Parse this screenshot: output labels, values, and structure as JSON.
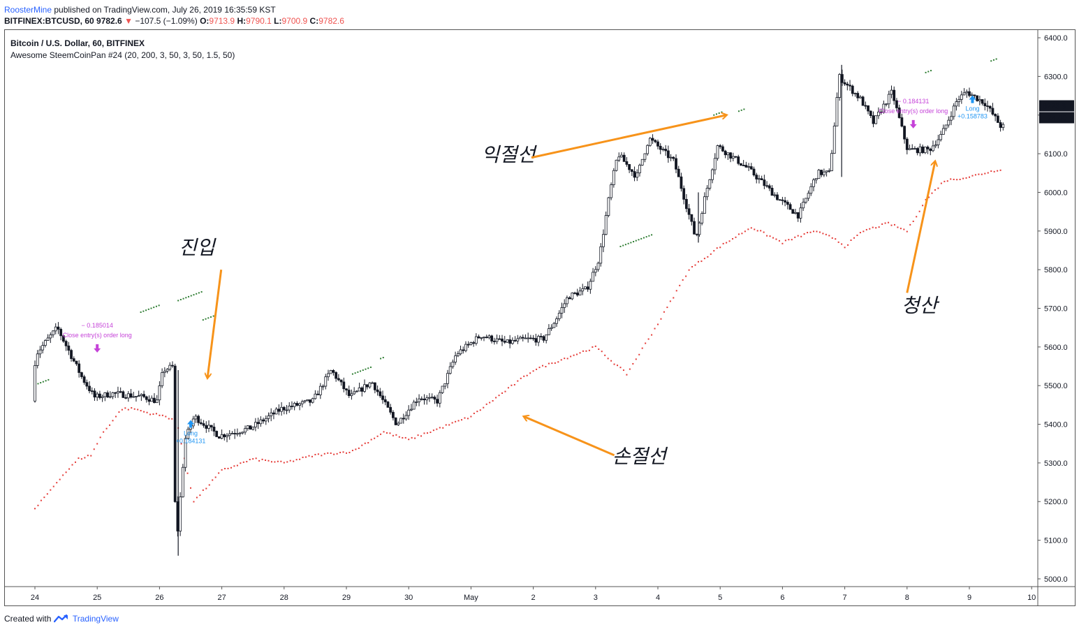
{
  "header": {
    "user": "RoosterMine",
    "published": "published on TradingView.com, July 26, 2019 16:35:59 KST",
    "symbol": "BITFINEX:BTCUSD, 60",
    "last": "9782.6",
    "change": "−107.5 (−1.09%)",
    "o_label": "O:",
    "o_val": "9713.9",
    "h_label": "H:",
    "h_val": "9790.1",
    "l_label": "L:",
    "l_val": "9700.9",
    "c_label": "C:",
    "c_val": "9782.6"
  },
  "legend": {
    "title": "Bitcoin / U.S. Dollar, 60, BITFINEX",
    "indicator": "Awesome SteemCoinPan #24 (20, 200, 3, 50, 3, 50, 1.5, 50)"
  },
  "footer": {
    "created": "Created with",
    "brand": "TradingView"
  },
  "colors": {
    "up": "#131722",
    "stop": "#e53935",
    "take": "#2e7d32",
    "arrow": "#f7931a",
    "long": "#2196f3",
    "close": "#c542d8"
  },
  "chart_data": {
    "type": "line",
    "title": "Bitcoin / U.S. Dollar, 60, BITFINEX",
    "ylim": [
      4980,
      6420
    ],
    "yticks": [
      "6400.0",
      "6300.0",
      "6200.0",
      "6100.0",
      "6000.0",
      "5900.0",
      "5800.0",
      "5700.0",
      "5600.0",
      "5500.0",
      "5400.0",
      "5300.0",
      "5200.0",
      "5100.0",
      "5000.0"
    ],
    "xticks": [
      "24",
      "25",
      "26",
      "27",
      "28",
      "29",
      "30",
      "May",
      "2",
      "3",
      "4",
      "5",
      "6",
      "7",
      "8",
      "9",
      "10"
    ],
    "price_label": "6223.9",
    "price_value": 6223.9,
    "countdown": "24:00",
    "price_anchors": [
      [
        0,
        5460
      ],
      [
        0.05,
        5580
      ],
      [
        0.4,
        5650
      ],
      [
        0.8,
        5520
      ],
      [
        1.0,
        5470
      ],
      [
        1.3,
        5480
      ],
      [
        1.8,
        5470
      ],
      [
        2.0,
        5460
      ],
      [
        2.1,
        5540
      ],
      [
        2.27,
        5550
      ],
      [
        2.3,
        5060
      ],
      [
        2.45,
        5360
      ],
      [
        2.6,
        5420
      ],
      [
        3.0,
        5370
      ],
      [
        3.5,
        5390
      ],
      [
        4.0,
        5440
      ],
      [
        4.5,
        5460
      ],
      [
        4.8,
        5540
      ],
      [
        5.1,
        5470
      ],
      [
        5.45,
        5510
      ],
      [
        5.85,
        5400
      ],
      [
        6.2,
        5470
      ],
      [
        6.5,
        5460
      ],
      [
        6.8,
        5580
      ],
      [
        7.2,
        5630
      ],
      [
        7.6,
        5610
      ],
      [
        7.9,
        5620
      ],
      [
        8.2,
        5620
      ],
      [
        8.4,
        5670
      ],
      [
        8.6,
        5730
      ],
      [
        8.9,
        5750
      ],
      [
        9.1,
        5830
      ],
      [
        9.27,
        6000
      ],
      [
        9.4,
        6100
      ],
      [
        9.7,
        6040
      ],
      [
        9.9,
        6140
      ],
      [
        10.3,
        6080
      ],
      [
        10.65,
        5880
      ],
      [
        10.8,
        5990
      ],
      [
        11.0,
        6120
      ],
      [
        11.5,
        6060
      ],
      [
        12.0,
        5980
      ],
      [
        12.3,
        5940
      ],
      [
        12.6,
        6050
      ],
      [
        12.8,
        6050
      ],
      [
        12.95,
        6300
      ],
      [
        13.3,
        6240
      ],
      [
        13.5,
        6180
      ],
      [
        13.8,
        6260
      ],
      [
        14.05,
        6110
      ],
      [
        14.4,
        6110
      ],
      [
        14.6,
        6150
      ],
      [
        14.85,
        6240
      ],
      [
        15.0,
        6260
      ],
      [
        15.3,
        6230
      ],
      [
        15.55,
        6170
      ]
    ],
    "stop_line": [
      [
        0,
        5180
      ],
      [
        0.4,
        5260
      ],
      [
        0.7,
        5310
      ],
      [
        0.9,
        5320
      ],
      [
        1.1,
        5380
      ],
      [
        1.4,
        5440
      ],
      [
        1.6,
        5440
      ],
      [
        1.8,
        5430
      ],
      [
        2.1,
        5420
      ],
      [
        2.27,
        5410
      ],
      [
        2.55,
        5200
      ],
      [
        3.0,
        5280
      ],
      [
        3.5,
        5310
      ],
      [
        4.0,
        5300
      ],
      [
        4.5,
        5320
      ],
      [
        5.1,
        5330
      ],
      [
        5.6,
        5380
      ],
      [
        6.0,
        5360
      ],
      [
        6.5,
        5390
      ],
      [
        7.0,
        5420
      ],
      [
        7.5,
        5480
      ],
      [
        8.0,
        5540
      ],
      [
        8.5,
        5570
      ],
      [
        9.0,
        5600
      ],
      [
        9.5,
        5530
      ],
      [
        10.0,
        5660
      ],
      [
        10.5,
        5800
      ],
      [
        11.0,
        5860
      ],
      [
        11.5,
        5910
      ],
      [
        12.0,
        5870
      ],
      [
        12.5,
        5900
      ],
      [
        12.85,
        5880
      ],
      [
        13.0,
        5860
      ],
      [
        13.3,
        5900
      ],
      [
        13.7,
        5920
      ],
      [
        14.0,
        5900
      ],
      [
        14.3,
        5980
      ],
      [
        14.6,
        6030
      ],
      [
        15.0,
        6040
      ],
      [
        15.5,
        6060
      ]
    ],
    "signals": [
      {
        "type": "close",
        "lines": [
          "− 0.185014",
          "Close entry(s) order long"
        ],
        "x": 1.0,
        "y": 5600
      },
      {
        "type": "long",
        "lines": [
          "Long",
          "+0.184131"
        ],
        "x": 2.5,
        "y": 5400
      },
      {
        "type": "close",
        "lines": [
          "− 0.184131",
          "Close entry(s) order long"
        ],
        "x": 14.1,
        "y": 6180
      },
      {
        "type": "long",
        "lines": [
          "Long",
          "+0.158783"
        ],
        "x": 15.05,
        "y": 6240
      }
    ],
    "annotations": [
      {
        "text": "진입",
        "x": 2.6,
        "y": 5840
      },
      {
        "text": "익절선",
        "x": 7.6,
        "y": 6080
      },
      {
        "text": "손절선",
        "x": 9.7,
        "y": 5300
      },
      {
        "text": "청산",
        "x": 14.2,
        "y": 5690
      }
    ]
  }
}
